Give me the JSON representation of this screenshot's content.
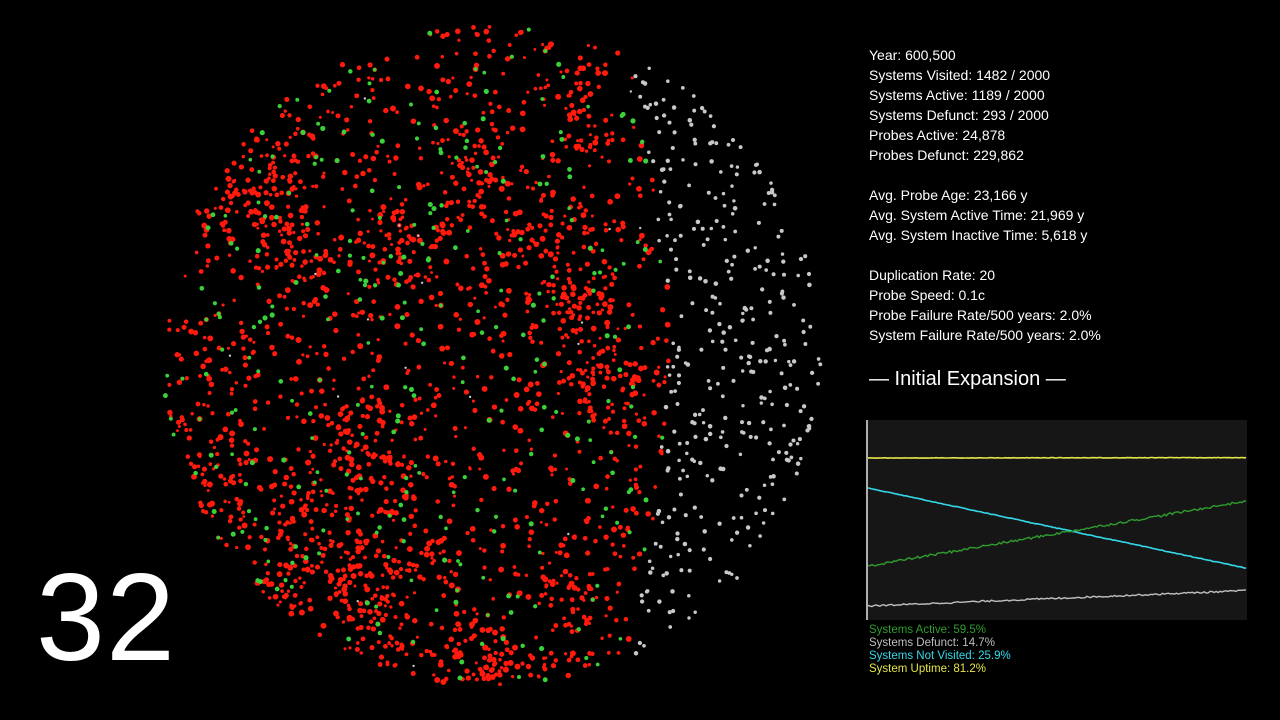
{
  "colors": {
    "visited_probe": "#ff1a0d",
    "active_system": "#3ad13a",
    "unvisited_system": "#c8c8c8",
    "background": "#000000",
    "graph_background": "#161616",
    "legend_active": "#2e9e2e",
    "legend_defunct": "#bfbfbf",
    "legend_not_visited": "#34d8e8",
    "legend_uptime": "#e6e64a"
  },
  "episode_number": "32",
  "stats": {
    "year": "Year: 600,500",
    "systems_visited": "Systems Visited: 1482 / 2000",
    "systems_active": "Systems Active: 1189 / 2000",
    "systems_defunct": "Systems Defunct: 293 / 2000",
    "probes_active": "Probes Active: 24,878",
    "probes_defunct": "Probes Defunct: 229,862",
    "avg_probe_age": "Avg. Probe Age: 23,166 y",
    "avg_system_active_time": "Avg. System Active Time: 21,969 y",
    "avg_system_inactive_time": "Avg. System Inactive Time: 5,618 y",
    "duplication_rate": "Duplication Rate: 20",
    "probe_speed": "Probe Speed: 0.1c",
    "probe_failure_rate": "Probe Failure Rate/500 years: 2.0%",
    "system_failure_rate": "System Failure Rate/500 years: 2.0%"
  },
  "phase_title": "— Initial Expansion —",
  "legend": {
    "active": "Systems Active: 59.5%",
    "defunct": "Systems Defunct: 14.7%",
    "not_visited": "Systems Not Visited: 25.9%",
    "uptime": "System Uptime: 81.2%"
  },
  "graph_series": {
    "uptime": [
      0.81,
      0.812
    ],
    "not_visited": [
      0.66,
      0.259
    ],
    "active": [
      0.27,
      0.595
    ],
    "defunct": [
      0.07,
      0.147
    ]
  }
}
